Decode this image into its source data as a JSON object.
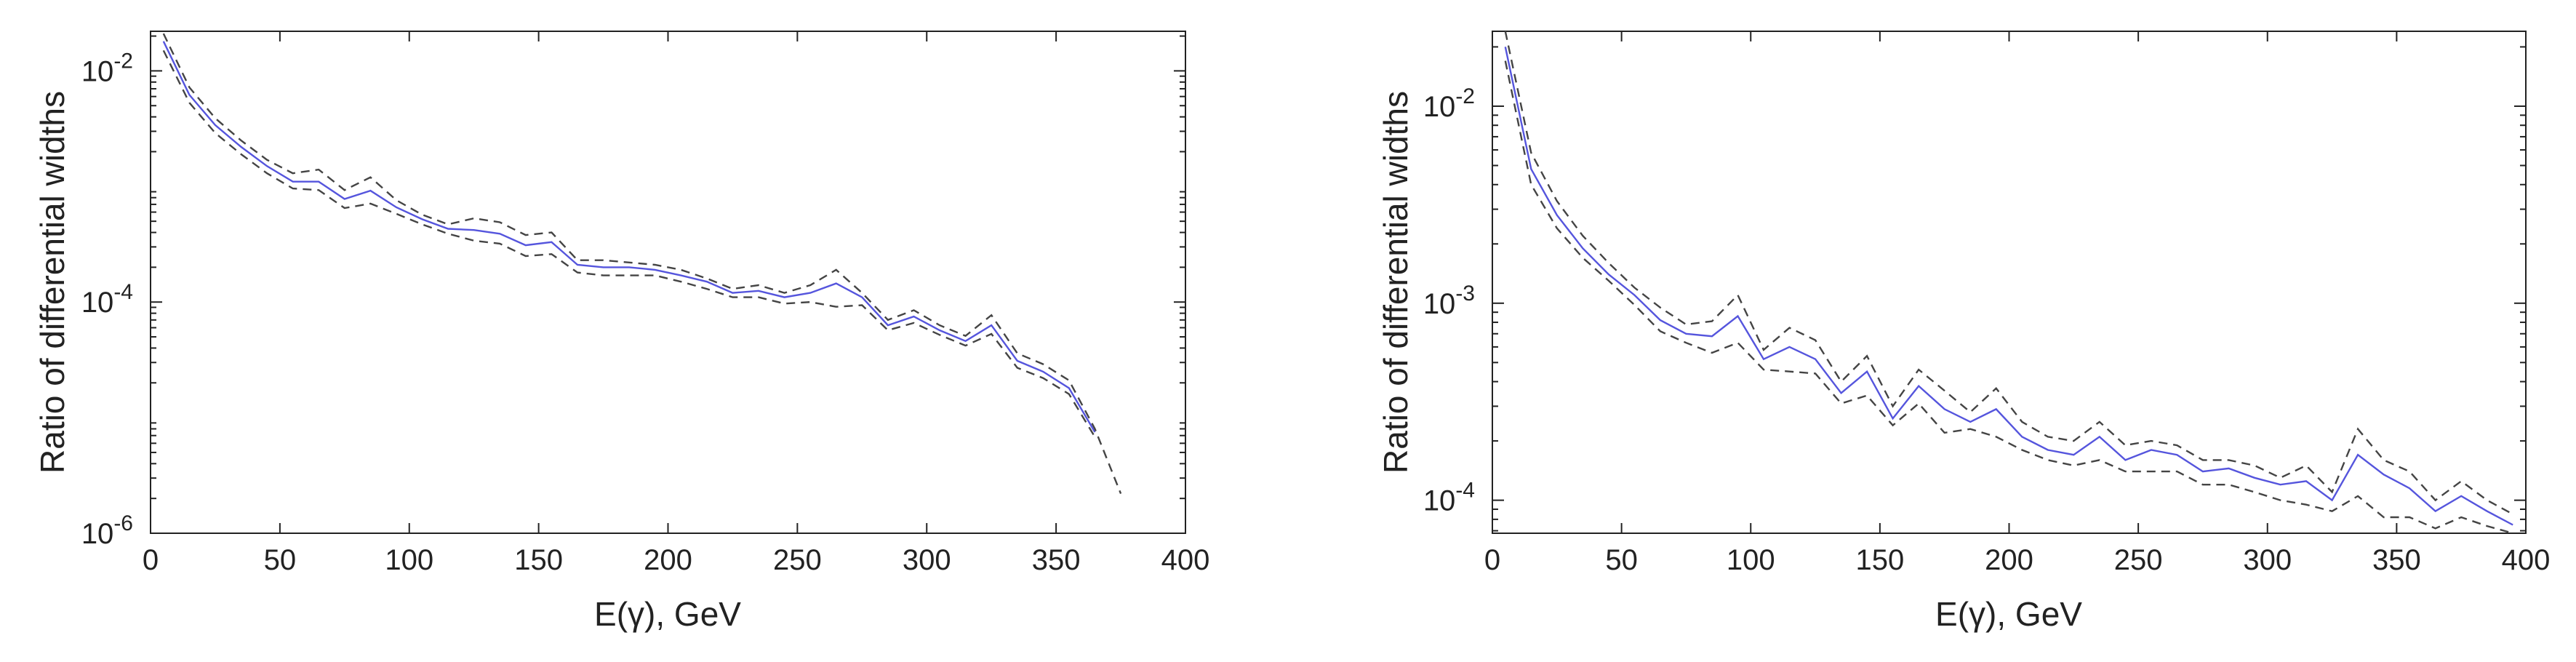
{
  "chart_data": [
    {
      "type": "line",
      "xlabel": "E(γ), GeV",
      "ylabel": "Ratio of differential widths",
      "xlim": [
        0,
        400
      ],
      "ylim": [
        1e-06,
        0.022
      ],
      "yscale": "log",
      "xticks": [
        "0",
        "50",
        "100",
        "150",
        "200",
        "250",
        "300",
        "350",
        "400"
      ],
      "yticks": [
        {
          "value": 0.01,
          "base": "10",
          "exp": "-2"
        },
        {
          "value": 0.0001,
          "base": "10",
          "exp": "-4"
        },
        {
          "value": 1e-06,
          "base": "10",
          "exp": "-6"
        }
      ],
      "grid": false,
      "series": [
        {
          "color": "#5555dd",
          "dash": "solid",
          "x": [
            5,
            15,
            25,
            35,
            45,
            55,
            65,
            75,
            85,
            95,
            105,
            115,
            125,
            135,
            145,
            155,
            165,
            175,
            185,
            195,
            205,
            215,
            225,
            235,
            245,
            255,
            265,
            275,
            285,
            295,
            305,
            315,
            325,
            335,
            345,
            355,
            365
          ],
          "y": [
            0.018,
            0.0062,
            0.0034,
            0.0022,
            0.0015,
            0.0011,
            0.0011,
            0.00078,
            0.00092,
            0.00066,
            0.00052,
            0.00043,
            0.00042,
            0.00039,
            0.00031,
            0.00033,
            0.00021,
            0.0002,
            0.0002,
            0.00019,
            0.00017,
            0.00015,
            0.00012,
            0.000125,
            0.00011,
            0.00012,
            0.000145,
            0.00011,
            6.3e-05,
            7.5e-05,
            5.7e-05,
            4.6e-05,
            6.3e-05,
            3.1e-05,
            2.5e-05,
            1.8e-05,
            7.5e-06
          ]
        },
        {
          "color": "#444444",
          "dash": "dashed",
          "x": [
            5,
            15,
            25,
            35,
            45,
            55,
            65,
            75,
            85,
            95,
            105,
            115,
            125,
            135,
            145,
            155,
            165,
            175,
            185,
            195,
            205,
            215,
            225,
            235,
            245,
            255,
            265,
            275,
            285,
            295,
            305,
            315,
            325,
            335,
            345,
            355,
            365,
            375
          ],
          "y": [
            0.021,
            0.0072,
            0.0039,
            0.0025,
            0.0017,
            0.0013,
            0.0014,
            0.00093,
            0.0012,
            0.00076,
            0.00057,
            0.00047,
            0.00053,
            0.00049,
            0.00038,
            0.0004,
            0.00023,
            0.00023,
            0.00022,
            0.00021,
            0.00019,
            0.00016,
            0.00013,
            0.00014,
            0.00012,
            0.00014,
            0.00019,
            0.00012,
            7e-05,
            8.5e-05,
            6.3e-05,
            5.1e-05,
            7.7e-05,
            3.6e-05,
            2.9e-05,
            2.1e-05,
            8e-06,
            2.2e-06
          ]
        },
        {
          "color": "#444444",
          "dash": "dashed",
          "x": [
            5,
            15,
            25,
            35,
            45,
            55,
            65,
            75,
            85,
            95,
            105,
            115,
            125,
            135,
            145,
            155,
            165,
            175,
            185,
            195,
            205,
            215,
            225,
            235,
            245,
            255,
            265,
            275,
            285,
            295,
            305,
            315,
            325,
            335,
            345,
            355,
            365
          ],
          "y": [
            0.015,
            0.0053,
            0.0029,
            0.0019,
            0.0013,
            0.00096,
            0.00093,
            0.00065,
            0.00071,
            0.00058,
            0.00047,
            0.00039,
            0.00034,
            0.00032,
            0.00025,
            0.00026,
            0.00018,
            0.00017,
            0.00017,
            0.00017,
            0.00015,
            0.00013,
            0.00011,
            0.00011,
            9.7e-05,
            0.0001,
            9.1e-05,
            9.4e-05,
            5.7e-05,
            6.6e-05,
            5.2e-05,
            4.2e-05,
            5.3e-05,
            2.7e-05,
            2.2e-05,
            1.6e-05,
            6.8e-06
          ]
        }
      ]
    },
    {
      "type": "line",
      "xlabel": "E(γ), GeV",
      "ylabel": "Ratio of differential widths",
      "xlim": [
        0,
        400
      ],
      "ylim": [
        6.8e-05,
        0.024
      ],
      "yscale": "log",
      "xticks": [
        "0",
        "50",
        "100",
        "150",
        "200",
        "250",
        "300",
        "350",
        "400"
      ],
      "yticks": [
        {
          "value": 0.01,
          "base": "10",
          "exp": "-2"
        },
        {
          "value": 0.001,
          "base": "10",
          "exp": "-3"
        },
        {
          "value": 0.0001,
          "base": "10",
          "exp": "-4"
        }
      ],
      "grid": false,
      "series": [
        {
          "color": "#5555dd",
          "dash": "solid",
          "x": [
            5,
            15,
            25,
            35,
            45,
            55,
            65,
            75,
            85,
            95,
            105,
            115,
            125,
            135,
            145,
            155,
            165,
            175,
            185,
            195,
            205,
            215,
            225,
            235,
            245,
            255,
            265,
            275,
            285,
            295,
            305,
            315,
            325,
            335,
            345,
            355,
            365,
            375,
            385,
            395
          ],
          "y": [
            0.02,
            0.0048,
            0.0028,
            0.0019,
            0.0014,
            0.0011,
            0.00082,
            0.0007,
            0.00068,
            0.00086,
            0.00052,
            0.0006,
            0.00052,
            0.00035,
            0.00045,
            0.00026,
            0.00038,
            0.00029,
            0.00025,
            0.00029,
            0.00021,
            0.00018,
            0.00017,
            0.00021,
            0.00016,
            0.00018,
            0.00017,
            0.00014,
            0.000145,
            0.00013,
            0.00012,
            0.000125,
            0.0001,
            0.00017,
            0.000135,
            0.000115,
            8.8e-05,
            0.000105,
            8.8e-05,
            7.5e-05
          ]
        },
        {
          "color": "#444444",
          "dash": "dashed",
          "x": [
            5,
            15,
            25,
            35,
            45,
            55,
            65,
            75,
            85,
            95,
            105,
            115,
            125,
            135,
            145,
            155,
            165,
            175,
            185,
            195,
            205,
            215,
            225,
            235,
            245,
            255,
            265,
            275,
            285,
            295,
            305,
            315,
            325,
            335,
            345,
            355,
            365,
            375,
            385,
            395
          ],
          "y": [
            0.024,
            0.0058,
            0.0033,
            0.0022,
            0.0016,
            0.0012,
            0.00095,
            0.00078,
            0.00081,
            0.0011,
            0.00058,
            0.00075,
            0.00065,
            0.0004,
            0.00054,
            0.0003,
            0.00046,
            0.00036,
            0.00028,
            0.00037,
            0.00025,
            0.00021,
            0.0002,
            0.00025,
            0.00019,
            0.0002,
            0.00019,
            0.00016,
            0.00016,
            0.00015,
            0.00013,
            0.00015,
            0.00011,
            0.00023,
            0.00016,
            0.00014,
            0.0001,
            0.000125,
            0.0001,
            8.5e-05
          ]
        },
        {
          "color": "#444444",
          "dash": "dashed",
          "x": [
            5,
            15,
            25,
            35,
            45,
            55,
            65,
            75,
            85,
            95,
            105,
            115,
            125,
            135,
            145,
            155,
            165,
            175,
            185,
            195,
            205,
            215,
            225,
            235,
            245,
            255,
            265,
            275,
            285,
            295,
            305,
            315,
            325,
            335,
            345,
            355,
            365,
            375,
            385,
            395
          ],
          "y": [
            0.017,
            0.004,
            0.0024,
            0.0017,
            0.0013,
            0.00098,
            0.00072,
            0.00063,
            0.00056,
            0.00063,
            0.00046,
            0.00045,
            0.00044,
            0.00031,
            0.00034,
            0.00024,
            0.00031,
            0.00022,
            0.00023,
            0.00021,
            0.00018,
            0.00016,
            0.00015,
            0.00016,
            0.00014,
            0.00014,
            0.00014,
            0.00012,
            0.00012,
            0.00011,
            0.0001,
            9.5e-05,
            8.8e-05,
            0.000105,
            8.2e-05,
            8.2e-05,
            7.2e-05,
            8.2e-05,
            7.4e-05,
            6.8e-05
          ]
        }
      ]
    }
  ]
}
